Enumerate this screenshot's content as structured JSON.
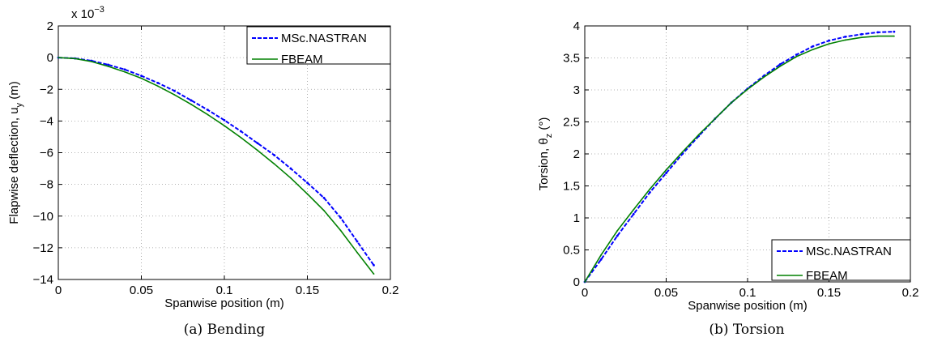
{
  "chart_data": [
    {
      "type": "line",
      "caption": "(a)  Bending",
      "xlabel": "Spanwise position (m)",
      "ylabel": {
        "main": "Flapwise deflection, u",
        "sub": "y",
        "unit": " (m)"
      },
      "y_multiplier": {
        "base": "x 10",
        "exp": "−3"
      },
      "xlim": [
        0,
        0.2
      ],
      "ylim": [
        -14,
        2
      ],
      "xticks": [
        0,
        0.05,
        0.1,
        0.15,
        0.2
      ],
      "xtick_labels": [
        "0",
        "0.05",
        "0.1",
        "0.15",
        "0.2"
      ],
      "yticks": [
        -14,
        -12,
        -10,
        -8,
        -6,
        -4,
        -2,
        0,
        2
      ],
      "ytick_labels": [
        "−14",
        "−12",
        "−10",
        "−8",
        "−6",
        "−4",
        "−2",
        "0",
        "2"
      ],
      "grid": true,
      "legend_position": "top-right",
      "series": [
        {
          "name": "MSc.NASTRAN",
          "color": "#0000ff",
          "style": "dashed-dots",
          "x": [
            0,
            0.01,
            0.02,
            0.03,
            0.04,
            0.05,
            0.06,
            0.07,
            0.08,
            0.09,
            0.1,
            0.11,
            0.12,
            0.13,
            0.14,
            0.15,
            0.16,
            0.17,
            0.18,
            0.19
          ],
          "y": [
            0,
            -0.05,
            -0.2,
            -0.45,
            -0.75,
            -1.15,
            -1.6,
            -2.1,
            -2.7,
            -3.3,
            -3.95,
            -4.65,
            -5.4,
            -6.15,
            -7.0,
            -7.9,
            -8.85,
            -10.1,
            -11.6,
            -13.1
          ]
        },
        {
          "name": "FBEAM",
          "color": "#008000",
          "style": "solid",
          "x": [
            0,
            0.01,
            0.02,
            0.03,
            0.04,
            0.05,
            0.06,
            0.07,
            0.08,
            0.09,
            0.1,
            0.11,
            0.12,
            0.13,
            0.14,
            0.15,
            0.16,
            0.17,
            0.18,
            0.19
          ],
          "y": [
            0,
            -0.06,
            -0.25,
            -0.55,
            -0.9,
            -1.3,
            -1.8,
            -2.35,
            -2.95,
            -3.6,
            -4.3,
            -5.05,
            -5.85,
            -6.7,
            -7.6,
            -8.6,
            -9.65,
            -10.9,
            -12.3,
            -13.65
          ]
        }
      ]
    },
    {
      "type": "line",
      "caption": "(b)  Torsion",
      "xlabel": "Spanwise position (m)",
      "ylabel": {
        "main": "Torsion, θ",
        "sub": "z",
        "unit": " (°)"
      },
      "xlim": [
        0,
        0.2
      ],
      "ylim": [
        0,
        4
      ],
      "xticks": [
        0,
        0.05,
        0.1,
        0.15,
        0.2
      ],
      "xtick_labels": [
        "0",
        "0.05",
        "0.1",
        "0.15",
        "0.2"
      ],
      "yticks": [
        0,
        0.5,
        1,
        1.5,
        2,
        2.5,
        3,
        3.5,
        4
      ],
      "ytick_labels": [
        "0",
        "0.5",
        "1",
        "1.5",
        "2",
        "2.5",
        "3",
        "3.5",
        "4"
      ],
      "grid": true,
      "legend_position": "bottom-right",
      "series": [
        {
          "name": "MSc.NASTRAN",
          "color": "#0000ff",
          "style": "dashed-dots",
          "x": [
            0,
            0.01,
            0.02,
            0.03,
            0.04,
            0.05,
            0.06,
            0.07,
            0.08,
            0.09,
            0.1,
            0.11,
            0.12,
            0.13,
            0.14,
            0.15,
            0.16,
            0.17,
            0.18,
            0.19
          ],
          "y": [
            0,
            0.35,
            0.72,
            1.06,
            1.4,
            1.7,
            2.0,
            2.28,
            2.55,
            2.8,
            3.02,
            3.22,
            3.4,
            3.55,
            3.68,
            3.77,
            3.83,
            3.87,
            3.9,
            3.91
          ]
        },
        {
          "name": "FBEAM",
          "color": "#008000",
          "style": "solid",
          "x": [
            0,
            0.01,
            0.02,
            0.03,
            0.04,
            0.05,
            0.06,
            0.07,
            0.08,
            0.09,
            0.1,
            0.11,
            0.12,
            0.13,
            0.14,
            0.15,
            0.16,
            0.17,
            0.18,
            0.19
          ],
          "y": [
            0,
            0.42,
            0.8,
            1.13,
            1.45,
            1.75,
            2.03,
            2.3,
            2.55,
            2.8,
            3.01,
            3.2,
            3.37,
            3.52,
            3.63,
            3.72,
            3.78,
            3.82,
            3.84,
            3.84
          ]
        }
      ]
    }
  ]
}
